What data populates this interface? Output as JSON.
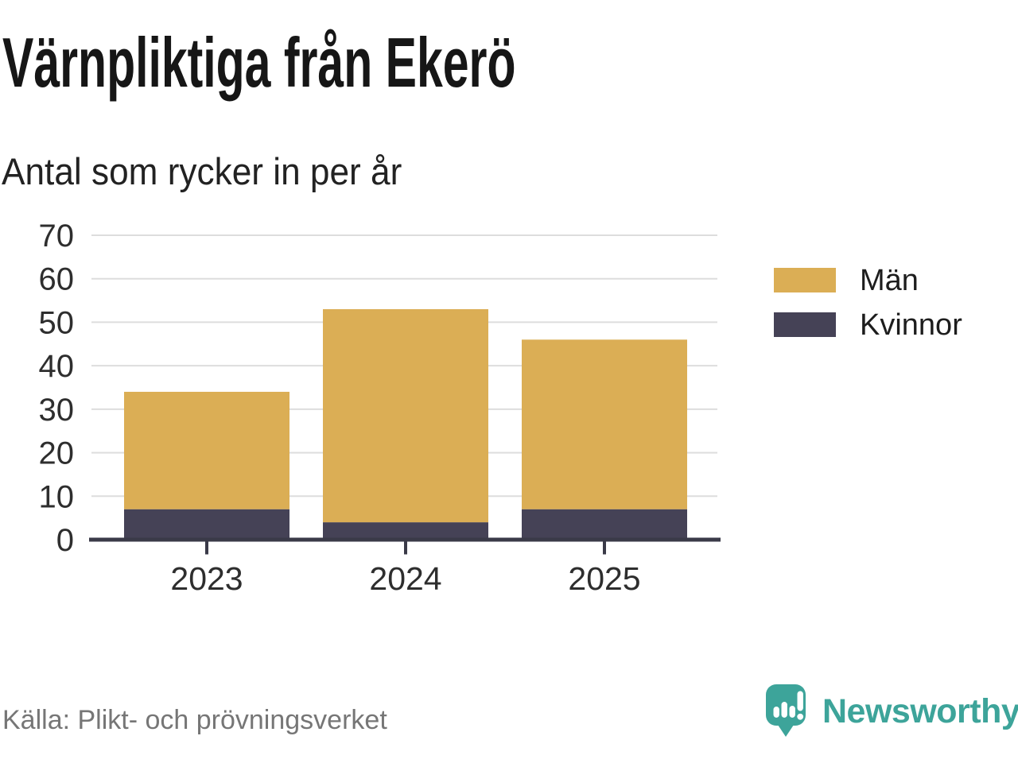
{
  "header": {
    "title": "Värnpliktiga från Ekerö",
    "subtitle": "Antal som rycker in per år"
  },
  "chart_data": {
    "type": "bar",
    "stacked": true,
    "title": "Värnpliktiga från Ekerö",
    "subtitle": "Antal som rycker in per år",
    "categories": [
      "2023",
      "2024",
      "2025"
    ],
    "series": [
      {
        "name": "Män",
        "color": "#DBAE55",
        "values": [
          27,
          49,
          39
        ]
      },
      {
        "name": "Kvinnor",
        "color": "#454256",
        "values": [
          7,
          4,
          7
        ]
      }
    ],
    "stack_totals": [
      34,
      53,
      46
    ],
    "ylabel": "",
    "xlabel": "",
    "ylim": [
      0,
      70
    ],
    "yticks": [
      0,
      10,
      20,
      30,
      40,
      50,
      60,
      70
    ],
    "grid": "horizontal",
    "legend_position": "right"
  },
  "footer": {
    "source": "Källa: Plikt- och prövningsverket",
    "brand": "Newsworthy"
  },
  "icons": {
    "brand": "bar-chart-speech-bubble-icon"
  },
  "colors": {
    "background": "#FFFFFF",
    "title_text": "#161616",
    "subtitle_text": "#222222",
    "axis_text": "#2E2E2E",
    "axis_line": "#3A3A48",
    "gridline": "#DDDDDD",
    "legend_text": "#1D1D1D",
    "source_text": "#767676",
    "men_bar": "#DBAE55",
    "women_bar": "#454256",
    "brand_teal": "#3DA49A"
  }
}
